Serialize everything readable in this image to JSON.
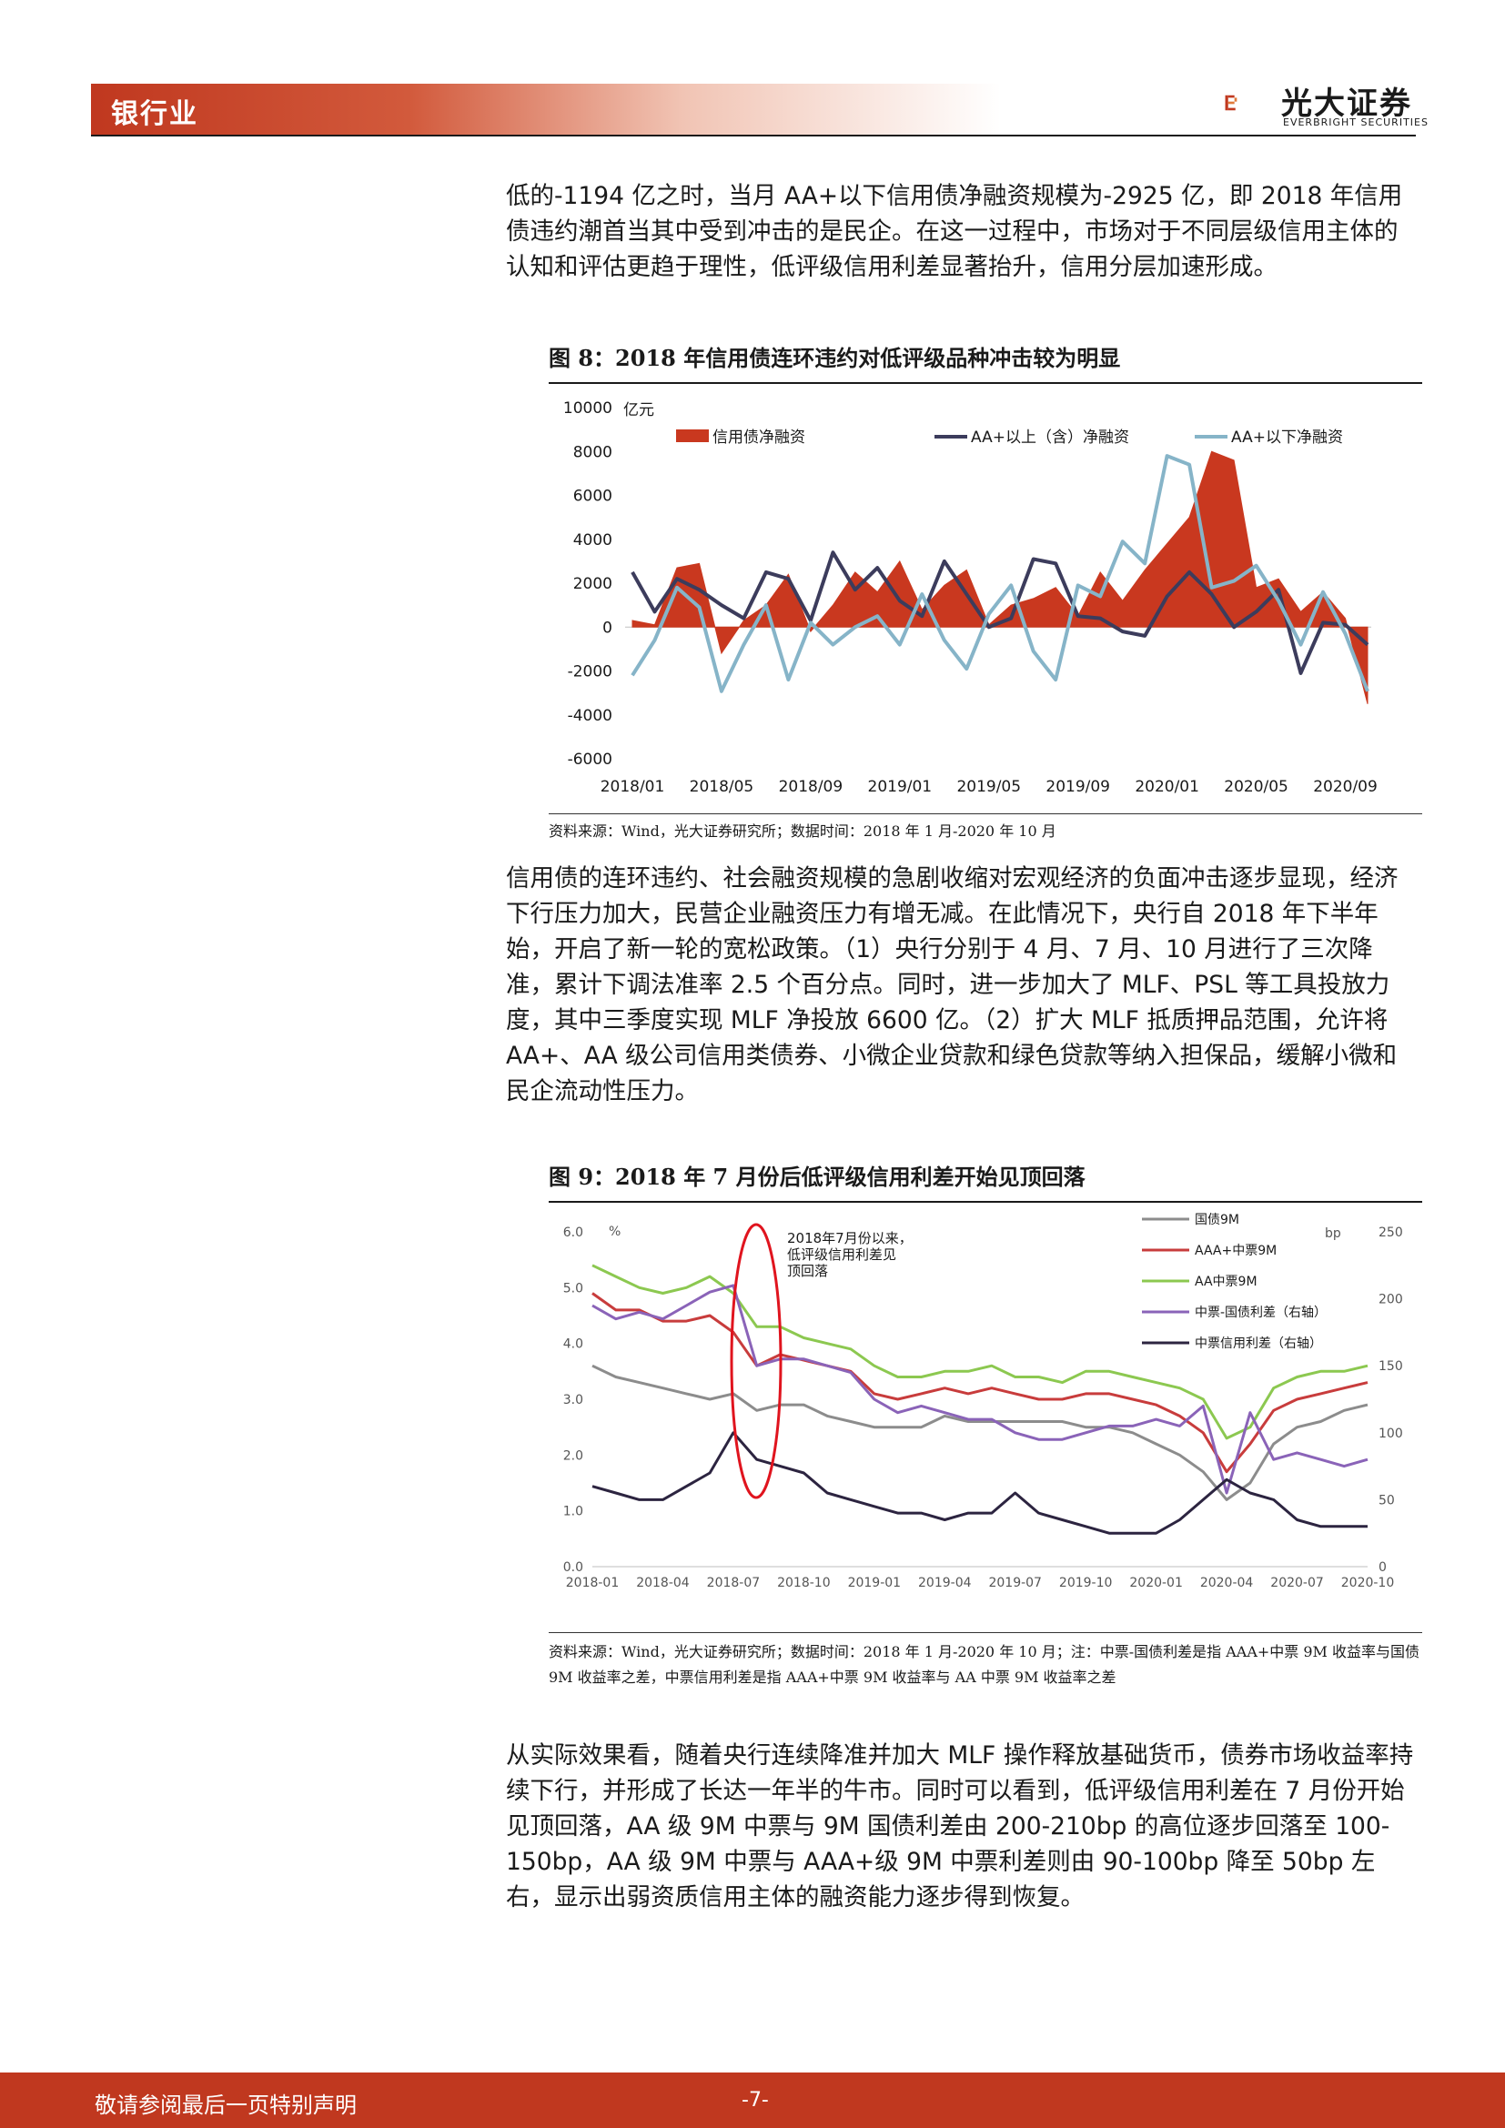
{
  "header": {
    "section": "银行业",
    "logo_cn": "光大证券",
    "logo_en": "EVERBRIGHT SECURITIES"
  },
  "paragraphs": {
    "p1": "低的-1194 亿之时，当月 AA+以下信用债净融资规模为-2925 亿，即 2018 年信用债违约潮首当其中受到冲击的是民企。在这一过程中，市场对于不同层级信用主体的认知和评估更趋于理性，低评级信用利差显著抬升，信用分层加速形成。",
    "p2": "信用债的连环违约、社会融资规模的急剧收缩对宏观经济的负面冲击逐步显现，经济下行压力加大，民营企业融资压力有增无减。在此情况下，央行自 2018 年下半年始，开启了新一轮的宽松政策。（1）央行分别于 4 月、7 月、10 月进行了三次降准，累计下调法准率 2.5 个百分点。同时，进一步加大了 MLF、PSL 等工具投放力度，其中三季度实现 MLF 净投放 6600 亿。（2）扩大 MLF 抵质押品范围，允许将 AA+、AA 级公司信用类债券、小微企业贷款和绿色贷款等纳入担保品，缓解小微和民企流动性压力。",
    "p3": "从实际效果看，随着央行连续降准并加大 MLF 操作释放基础货币，债券市场收益率持续下行，并形成了长达一年半的牛市。同时可以看到，低评级信用利差在 7 月份开始见顶回落，AA 级 9M 中票与 9M 国债利差由 200-210bp 的高位逐步回落至 100-150bp，AA 级 9M 中票与 AAA+级 9M 中票利差则由 90-100bp 降至 50bp 左右，显示出弱资质信用主体的融资能力逐步得到恢复。"
  },
  "figure8": {
    "title": "图 8：2018 年信用债连环违约对低评级品种冲击较为明显",
    "source": "资料来源：Wind，光大证券研究所；数据时间：2018 年 1 月-2020 年 10 月"
  },
  "figure9": {
    "title": "图 9：2018 年 7 月份后低评级信用利差开始见顶回落",
    "source": "资料来源：Wind，光大证券研究所；数据时间：2018 年 1 月-2020 年 10 月；注：中票-国债利差是指 AAA+中票 9M 收益率与国债 9M 收益率之差，中票信用利差是指 AAA+中票 9M 收益率与 AA 中票 9M 收益率之差",
    "annotation": [
      "2018年7月份以来，",
      "低评级信用利差见",
      "顶回落"
    ]
  },
  "footer": {
    "disclaimer": "敬请参阅最后一页特别声明",
    "page": "-7-"
  },
  "colors": {
    "brand_red": "#c0381f",
    "series_total": "#c9381f",
    "series_aa_plus_above": "#3c3c5c",
    "series_aa_plus_below": "#86b4c8",
    "treasury": "#8c8c8c",
    "aaa_plus": "#c83c3c",
    "aa": "#8cc850",
    "spread_mtn_treasury": "#8a63b8",
    "spread_credit": "#2c2440"
  },
  "chart_data": [
    {
      "type": "line",
      "title": "图 8：2018 年信用债连环违约对低评级品种冲击较为明显",
      "ylabel": "亿元",
      "ylim": [
        -6000,
        10000
      ],
      "yticks": [
        -6000,
        -4000,
        -2000,
        0,
        2000,
        4000,
        6000,
        8000,
        10000
      ],
      "xticks": [
        "2018/01",
        "2018/05",
        "2018/09",
        "2019/01",
        "2019/05",
        "2019/09",
        "2020/01",
        "2020/05",
        "2020/09"
      ],
      "legend_position": "top",
      "x": [
        "2018/01",
        "2018/02",
        "2018/03",
        "2018/04",
        "2018/05",
        "2018/06",
        "2018/07",
        "2018/08",
        "2018/09",
        "2018/10",
        "2018/11",
        "2018/12",
        "2019/01",
        "2019/02",
        "2019/03",
        "2019/04",
        "2019/05",
        "2019/06",
        "2019/07",
        "2019/08",
        "2019/09",
        "2019/10",
        "2019/11",
        "2019/12",
        "2020/01",
        "2020/02",
        "2020/03",
        "2020/04",
        "2020/05",
        "2020/06",
        "2020/07",
        "2020/08",
        "2020/09",
        "2020/10"
      ],
      "series": [
        {
          "name": "信用债净融资",
          "style": "area",
          "values": [
            300,
            100,
            2700,
            2900,
            -1194,
            300,
            1000,
            2400,
            -200,
            1000,
            2500,
            1600,
            3000,
            800,
            1900,
            2600,
            100,
            1000,
            1300,
            1800,
            500,
            2500,
            1200,
            2600,
            3800,
            5000,
            8000,
            7600,
            1800,
            2200,
            700,
            1600,
            400,
            -3500
          ]
        },
        {
          "name": "AA+以上（含）净融资",
          "style": "line",
          "values": [
            2500,
            700,
            2200,
            1700,
            1000,
            400,
            2500,
            2200,
            300,
            3400,
            1700,
            2700,
            1200,
            500,
            3000,
            1500,
            0,
            400,
            3100,
            2900,
            500,
            400,
            -200,
            -400,
            1400,
            2500,
            1500,
            0,
            700,
            1700,
            -2100,
            200,
            100,
            -800
          ]
        },
        {
          "name": "AA+以下净融资",
          "style": "line",
          "values": [
            -2200,
            -600,
            1800,
            900,
            -2925,
            -800,
            1000,
            -2400,
            200,
            -800,
            0,
            500,
            -800,
            1500,
            -600,
            -1900,
            600,
            1900,
            -1100,
            -2400,
            1900,
            1400,
            3900,
            2900,
            7800,
            7400,
            1800,
            2100,
            2800,
            1200,
            -800,
            1600,
            -300,
            -2925
          ]
        }
      ]
    },
    {
      "type": "line",
      "title": "图 9：2018 年 7 月份后低评级信用利差开始见顶回落",
      "ylabel": "%",
      "y2label": "bp",
      "ylim": [
        0,
        6
      ],
      "y2lim": [
        0,
        250
      ],
      "yticks": [
        0.0,
        1.0,
        2.0,
        3.0,
        4.0,
        5.0,
        6.0
      ],
      "y2ticks": [
        0,
        50,
        100,
        150,
        200,
        250
      ],
      "xticks": [
        "2018-01",
        "2018-04",
        "2018-07",
        "2018-10",
        "2019-01",
        "2019-04",
        "2019-07",
        "2019-10",
        "2020-01",
        "2020-04",
        "2020-07",
        "2020-10"
      ],
      "legend_position": "top-right",
      "x": [
        "2018-01",
        "2018-02",
        "2018-03",
        "2018-04",
        "2018-05",
        "2018-06",
        "2018-07",
        "2018-08",
        "2018-09",
        "2018-10",
        "2018-11",
        "2018-12",
        "2019-01",
        "2019-02",
        "2019-03",
        "2019-04",
        "2019-05",
        "2019-06",
        "2019-07",
        "2019-08",
        "2019-09",
        "2019-10",
        "2019-11",
        "2019-12",
        "2020-01",
        "2020-02",
        "2020-03",
        "2020-04",
        "2020-05",
        "2020-06",
        "2020-07",
        "2020-08",
        "2020-09",
        "2020-10"
      ],
      "series": [
        {
          "name": "国债9M",
          "axis": "left",
          "values": [
            3.6,
            3.4,
            3.3,
            3.2,
            3.1,
            3.0,
            3.1,
            2.8,
            2.9,
            2.9,
            2.7,
            2.6,
            2.5,
            2.5,
            2.5,
            2.7,
            2.6,
            2.6,
            2.6,
            2.6,
            2.6,
            2.5,
            2.5,
            2.4,
            2.2,
            2.0,
            1.7,
            1.2,
            1.5,
            2.2,
            2.5,
            2.6,
            2.8,
            2.9
          ]
        },
        {
          "name": "AAA+中票9M",
          "axis": "left",
          "values": [
            4.9,
            4.6,
            4.6,
            4.4,
            4.4,
            4.5,
            4.2,
            3.6,
            3.8,
            3.7,
            3.6,
            3.5,
            3.1,
            3.0,
            3.1,
            3.2,
            3.1,
            3.2,
            3.1,
            3.0,
            3.0,
            3.1,
            3.1,
            3.0,
            2.9,
            2.7,
            2.4,
            1.7,
            2.2,
            2.8,
            3.0,
            3.1,
            3.2,
            3.3
          ]
        },
        {
          "name": "AA中票9M",
          "axis": "left",
          "values": [
            5.4,
            5.2,
            5.0,
            4.9,
            5.0,
            5.2,
            4.9,
            4.3,
            4.3,
            4.1,
            4.0,
            3.9,
            3.6,
            3.4,
            3.4,
            3.5,
            3.5,
            3.6,
            3.4,
            3.4,
            3.3,
            3.5,
            3.5,
            3.4,
            3.3,
            3.2,
            3.0,
            2.3,
            2.5,
            3.2,
            3.4,
            3.5,
            3.5,
            3.6
          ]
        },
        {
          "name": "中票-国债利差（右轴）",
          "axis": "right",
          "values": [
            195,
            185,
            190,
            185,
            195,
            205,
            210,
            150,
            155,
            155,
            150,
            145,
            125,
            115,
            120,
            115,
            110,
            110,
            100,
            95,
            95,
            100,
            105,
            105,
            110,
            105,
            120,
            55,
            115,
            80,
            85,
            80,
            75,
            80
          ]
        },
        {
          "name": "中票信用利差（右轴）",
          "axis": "right",
          "values": [
            60,
            55,
            50,
            50,
            60,
            70,
            100,
            80,
            75,
            70,
            55,
            50,
            45,
            40,
            40,
            35,
            40,
            40,
            55,
            40,
            35,
            30,
            25,
            25,
            25,
            35,
            50,
            65,
            55,
            50,
            35,
            30,
            30,
            30
          ]
        }
      ]
    }
  ]
}
